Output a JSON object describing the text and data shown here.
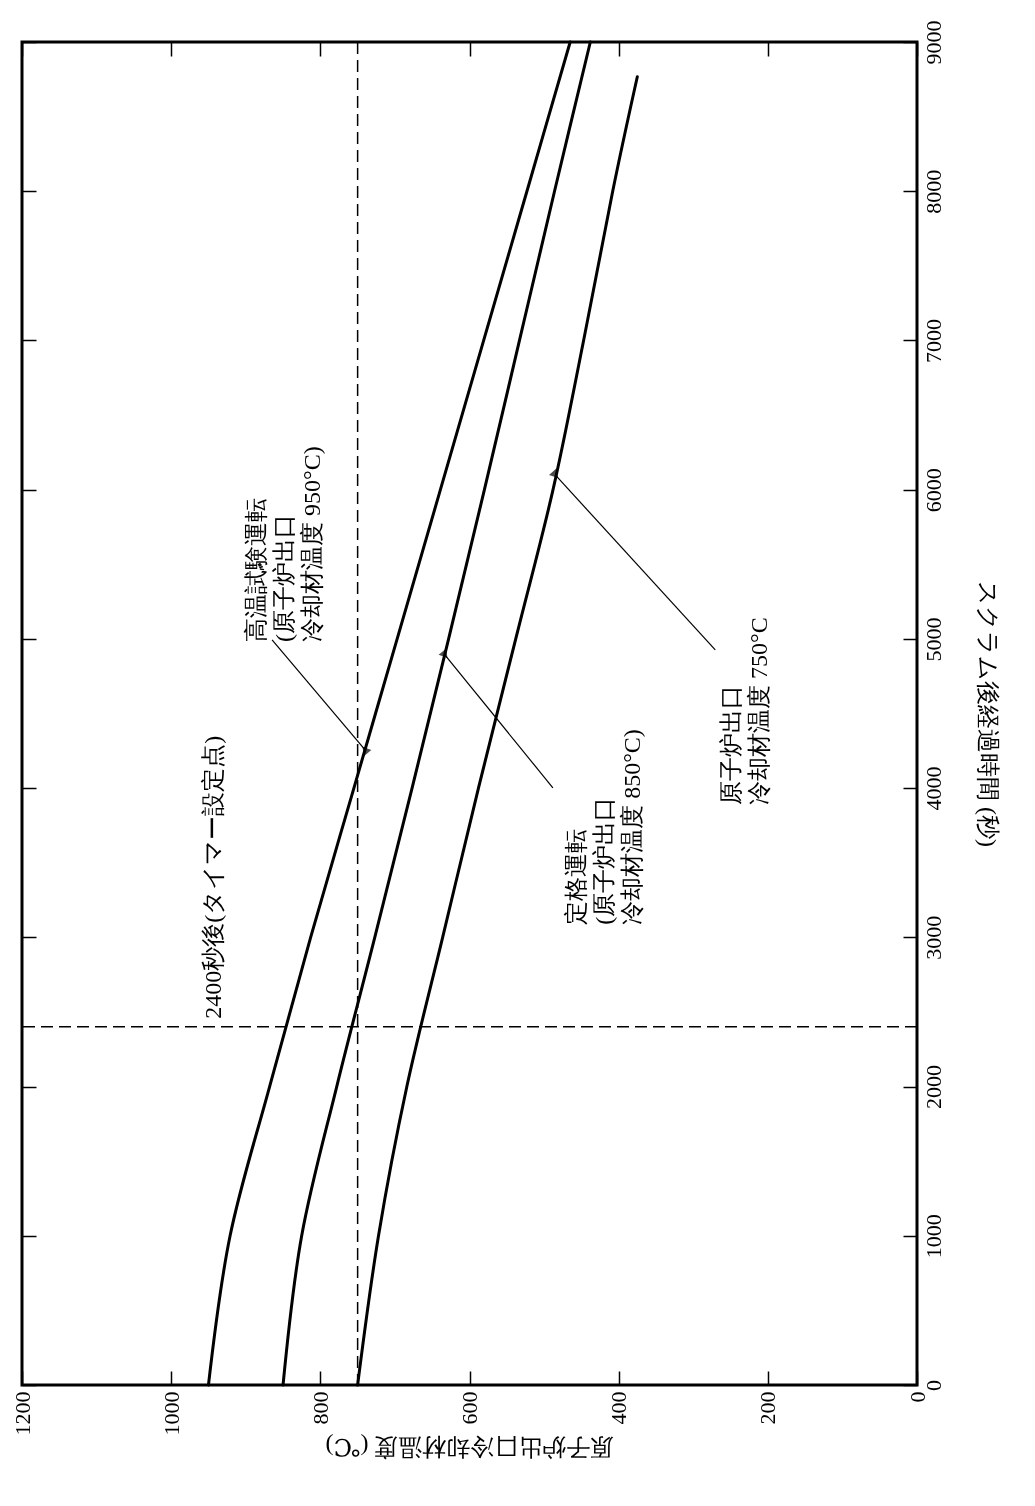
{
  "chart_data": {
    "type": "line",
    "xlabel": "原子炉出口冷却材温度 (℃)",
    "ylabel": "スクラム後経過時間 (秒)",
    "xlim": [
      1200,
      0
    ],
    "ylim": [
      0,
      9000
    ],
    "xticks": [
      1200,
      1000,
      800,
      600,
      400,
      200,
      0
    ],
    "yticks": [
      0,
      1000,
      2000,
      3000,
      4000,
      5000,
      6000,
      7000,
      8000,
      9000
    ],
    "line_style": "solid",
    "series": [
      {
        "color": "#000000",
        "x": [
          950,
          921,
          868,
          813,
          755,
          697,
          639,
          581,
          523,
          465
        ],
        "values": [
          0,
          1000,
          2000,
          3000,
          4000,
          5000,
          6000,
          7000,
          8000,
          9000
        ]
      },
      {
        "color": "#000000",
        "x": [
          850,
          825,
          778,
          727,
          677,
          628,
          580,
          533,
          486,
          438
        ],
        "values": [
          0,
          1000,
          2000,
          3000,
          4000,
          5000,
          6000,
          7000,
          8000,
          9000
        ]
      },
      {
        "color": "#000000",
        "x": [
          750,
          722,
          684,
          636,
          588,
          538,
          488,
          447,
          408,
          375
        ],
        "values": [
          0,
          1000,
          2000,
          3000,
          4000,
          5000,
          6000,
          7000,
          8000,
          8767
        ]
      }
    ],
    "ref_lines": [
      {
        "axis": "y",
        "value": 2400,
        "label": "2400秒後(タイマー設定点)",
        "color": "#000000",
        "line_style": "dashed"
      },
      {
        "axis": "x",
        "value": 750,
        "label": null,
        "color": "#000000",
        "line_style": "dashed"
      }
    ],
    "annotations": [
      {
        "text": "高温試験運転(原子炉出口冷却材温度 950°C)",
        "x": 740,
        "y": 4256
      },
      {
        "text": "定格運転(原子炉出口冷却材温度 850°C)",
        "x": 633,
        "y": 4893
      },
      {
        "text": "原子炉出口冷却材温度 750°C",
        "x": 485,
        "y": 6099
      }
    ]
  }
}
